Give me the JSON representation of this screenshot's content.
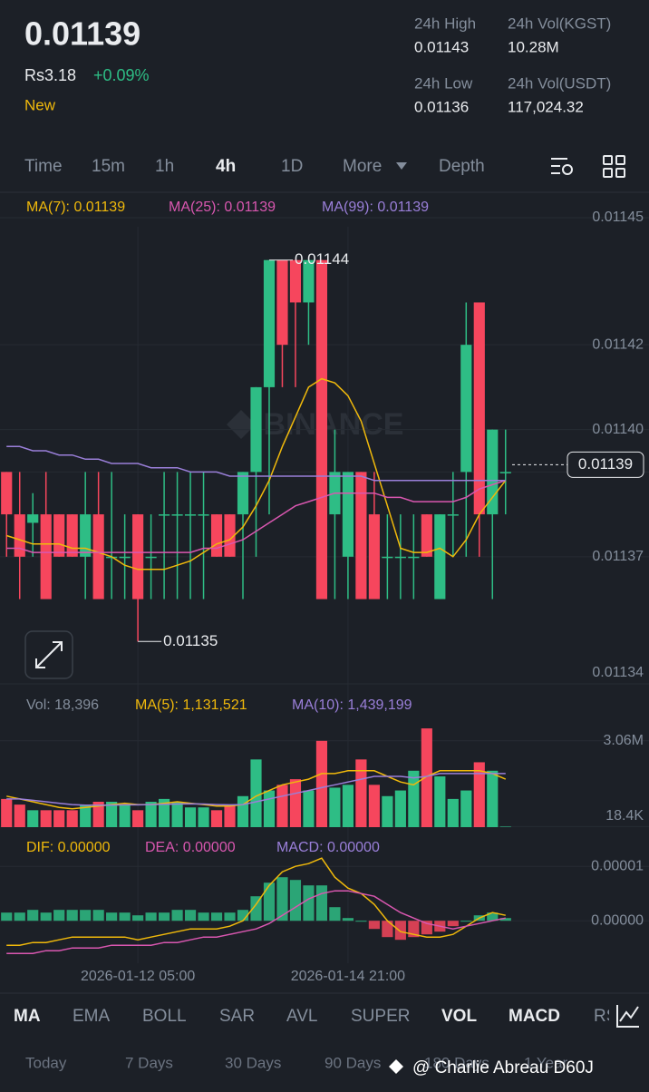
{
  "header": {
    "price": "0.01139",
    "fiat": "Rs3.18",
    "change": "+0.09%",
    "tag": "New",
    "stats": [
      {
        "label": "24h High",
        "value": "0.01143"
      },
      {
        "label": "24h Vol(KGST)",
        "value": "10.28M"
      },
      {
        "label": "24h Low",
        "value": "0.01136"
      },
      {
        "label": "24h Vol(USDT)",
        "value": "117,024.32"
      }
    ]
  },
  "intervals": {
    "items": [
      "Time",
      "15m",
      "1h",
      "4h",
      "1D",
      "More",
      "Depth"
    ],
    "active": "4h"
  },
  "watermark": "BINANCE",
  "chart_data": [
    {
      "type": "candlestick",
      "up_color": "#2ebd85",
      "down_color": "#f6465d",
      "open": [
        0.01139,
        0.01138,
        0.011378,
        0.01138,
        0.01138,
        0.01138,
        0.01137,
        0.01138,
        0.01137,
        0.01137,
        0.01138,
        0.01137,
        0.01138,
        0.01138,
        0.01138,
        0.01138,
        0.01138,
        0.01138,
        0.01138,
        0.01139,
        0.01141,
        0.01144,
        0.01144,
        0.01143,
        0.01144,
        0.01138,
        0.01137,
        0.01139,
        0.01138,
        0.01137,
        0.01137,
        0.01137,
        0.01138,
        0.01136,
        0.01138,
        0.01139,
        0.01143,
        0.01138,
        0.01139
      ],
      "high": [
        0.01139,
        0.01139,
        0.011385,
        0.01139,
        0.01138,
        0.01138,
        0.01139,
        0.01139,
        0.01139,
        0.01138,
        0.01138,
        0.01138,
        0.01139,
        0.01139,
        0.01139,
        0.01139,
        0.01138,
        0.01138,
        0.01139,
        0.01141,
        0.01144,
        0.01144,
        0.01144,
        0.01144,
        0.01144,
        0.0114,
        0.01139,
        0.01139,
        0.01139,
        0.01138,
        0.01138,
        0.01138,
        0.01138,
        0.01138,
        0.01139,
        0.01143,
        0.01143,
        0.0114,
        0.0114
      ],
      "low": [
        0.01137,
        0.01136,
        0.01137,
        0.01136,
        0.01137,
        0.01137,
        0.01136,
        0.01136,
        0.01136,
        0.01136,
        0.01135,
        0.01136,
        0.01136,
        0.01136,
        0.01136,
        0.01136,
        0.01137,
        0.01137,
        0.01136,
        0.01137,
        0.01138,
        0.01141,
        0.01141,
        0.01142,
        0.01136,
        0.01136,
        0.01136,
        0.01136,
        0.01136,
        0.01136,
        0.01136,
        0.01136,
        0.01137,
        0.01136,
        0.01137,
        0.01137,
        0.01137,
        0.01136,
        0.01138
      ],
      "close": [
        0.01138,
        0.01137,
        0.01138,
        0.01136,
        0.01137,
        0.01137,
        0.01138,
        0.01136,
        0.01137,
        0.01137,
        0.01136,
        0.01137,
        0.01138,
        0.01138,
        0.01138,
        0.01138,
        0.01137,
        0.01137,
        0.01139,
        0.01141,
        0.01144,
        0.01142,
        0.01143,
        0.01144,
        0.01136,
        0.01139,
        0.01139,
        0.01136,
        0.01136,
        0.01137,
        0.01137,
        0.01137,
        0.01137,
        0.01138,
        0.01138,
        0.01142,
        0.01138,
        0.0114,
        0.01139
      ],
      "series": [
        {
          "name": "MA(7): 0.01139",
          "color": "#f0b90b",
          "values": [
            0.011375,
            0.011374,
            0.011373,
            0.011373,
            0.011373,
            0.011372,
            0.011372,
            0.011371,
            0.01137,
            0.011368,
            0.011367,
            0.011367,
            0.011367,
            0.011368,
            0.011369,
            0.011371,
            0.011373,
            0.011374,
            0.011377,
            0.011382,
            0.011388,
            0.011396,
            0.011403,
            0.01141,
            0.011412,
            0.011411,
            0.011408,
            0.011402,
            0.011392,
            0.011382,
            0.011372,
            0.011371,
            0.011371,
            0.011372,
            0.01137,
            0.011374,
            0.01138,
            0.011384,
            0.011388
          ]
        },
        {
          "name": "MA(25): 0.01139",
          "color": "#d957b0",
          "values": [
            0.011372,
            0.011372,
            0.011371,
            0.011371,
            0.011371,
            0.011371,
            0.011371,
            0.011371,
            0.011371,
            0.011371,
            0.011371,
            0.011371,
            0.011371,
            0.011371,
            0.011371,
            0.011372,
            0.011372,
            0.011373,
            0.011374,
            0.011376,
            0.011378,
            0.01138,
            0.011382,
            0.011383,
            0.011384,
            0.011385,
            0.011385,
            0.011385,
            0.011385,
            0.011384,
            0.011384,
            0.011383,
            0.011383,
            0.011383,
            0.011383,
            0.011384,
            0.011386,
            0.011387,
            0.011388
          ]
        },
        {
          "name": "MA(99): 0.01139",
          "color": "#9a7fd9",
          "values": [
            0.011396,
            0.011396,
            0.011395,
            0.011395,
            0.011394,
            0.011394,
            0.011393,
            0.011393,
            0.011392,
            0.011392,
            0.011392,
            0.011391,
            0.011391,
            0.011391,
            0.01139,
            0.01139,
            0.01139,
            0.011389,
            0.011389,
            0.011389,
            0.011389,
            0.011389,
            0.011389,
            0.011389,
            0.011389,
            0.011389,
            0.011389,
            0.011389,
            0.011388,
            0.011388,
            0.011388,
            0.011388,
            0.011388,
            0.011388,
            0.011388,
            0.011388,
            0.011388,
            0.011388,
            0.011388
          ]
        }
      ],
      "ylim": [
        0.01134,
        0.01145
      ],
      "yticks": [
        0.01145,
        0.01142,
        {
          "value": 0.0114,
          "label": "0.01140"
        },
        0.01139,
        0.01137,
        0.01134
      ],
      "annotations": [
        {
          "value": 0.01144,
          "label": "0.01144",
          "at": "high"
        },
        {
          "value": 0.01135,
          "label": "0.01135",
          "at": "low"
        }
      ],
      "current": {
        "value": 0.01139,
        "label": "0.01139"
      },
      "grid": true
    },
    {
      "type": "bar",
      "series": [
        {
          "name": "Vol: 18,396",
          "color": "#848e9c",
          "values": [
            1000000,
            800000,
            600000,
            600000,
            600000,
            600000,
            800000,
            900000,
            900000,
            800000,
            600000,
            900000,
            1000000,
            900000,
            700000,
            700000,
            600000,
            800000,
            1100000,
            2400000,
            1300000,
            1500000,
            1700000,
            1300000,
            3060000,
            1400000,
            1500000,
            2400000,
            1500000,
            1100000,
            1300000,
            2000000,
            3500000,
            1800000,
            1000000,
            1300000,
            2300000,
            2000000,
            18396
          ]
        },
        {
          "name": "MA(5): 1,131,521",
          "color": "#f0b90b",
          "values": [
            1100000,
            1000000,
            900000,
            800000,
            700000,
            650000,
            700000,
            750000,
            800000,
            850000,
            800000,
            800000,
            850000,
            900000,
            850000,
            800000,
            750000,
            750000,
            800000,
            1100000,
            1300000,
            1500000,
            1600000,
            1700000,
            1900000,
            1900000,
            2000000,
            2000000,
            2000000,
            1800000,
            1600000,
            1500000,
            1800000,
            2000000,
            2000000,
            2000000,
            2000000,
            1900000,
            1700000
          ]
        },
        {
          "name": "MA(10): 1,439,199",
          "color": "#9a7fd9",
          "values": [
            1000000,
            1000000,
            950000,
            900000,
            850000,
            800000,
            780000,
            780000,
            780000,
            790000,
            790000,
            800000,
            810000,
            820000,
            830000,
            820000,
            800000,
            790000,
            800000,
            900000,
            1000000,
            1100000,
            1200000,
            1300000,
            1400000,
            1500000,
            1600000,
            1700000,
            1800000,
            1800000,
            1800000,
            1750000,
            1800000,
            1900000,
            1900000,
            1900000,
            1900000,
            1900000,
            1900000
          ]
        }
      ],
      "ylim": [
        0,
        3600000
      ],
      "yticks": [
        {
          "value": 3060000,
          "label": "3.06M"
        },
        {
          "value": 18400,
          "label": "18.4K"
        }
      ]
    },
    {
      "type": "macd",
      "x": [
        null,
        null,
        null,
        null,
        null,
        null,
        null,
        null,
        null,
        null,
        "2026-01-12 05:00",
        null,
        null,
        null,
        null,
        null,
        null,
        null,
        null,
        null,
        null,
        null,
        null,
        null,
        null,
        null,
        "2026-01-14 21:00",
        null,
        null,
        null,
        null,
        null,
        null,
        null,
        null,
        null,
        null,
        null,
        null
      ],
      "series": [
        {
          "name": "DIF: 0.00000",
          "color": "#f0b90b",
          "values": [
            -4.5e-06,
            -4.5e-06,
            -4e-06,
            -4e-06,
            -3.5e-06,
            -3e-06,
            -3e-06,
            -3e-06,
            -3e-06,
            -3e-06,
            -3.5e-06,
            -3e-06,
            -2.5e-06,
            -2e-06,
            -1.5e-06,
            -1.5e-06,
            -1.5e-06,
            -1e-06,
            0,
            3e-06,
            6.5e-06,
            9e-06,
            1e-05,
            1.05e-05,
            1.15e-05,
            8e-06,
            6e-06,
            5e-06,
            3e-06,
            0,
            -2e-06,
            -2.5e-06,
            -3e-06,
            -3e-06,
            -2.5e-06,
            -1e-06,
            5e-07,
            1.5e-06,
            1e-06
          ]
        },
        {
          "name": "DEA: 0.00000",
          "color": "#d957b0",
          "values": [
            -6e-06,
            -6e-06,
            -6e-06,
            -5.5e-06,
            -5.5e-06,
            -5e-06,
            -5e-06,
            -5e-06,
            -4.5e-06,
            -4.5e-06,
            -4.5e-06,
            -4.5e-06,
            -4e-06,
            -4e-06,
            -3.5e-06,
            -3e-06,
            -3e-06,
            -2.5e-06,
            -2e-06,
            -1.5e-06,
            -5e-07,
            1e-06,
            2.5e-06,
            4e-06,
            5e-06,
            5.5e-06,
            5.5e-06,
            5e-06,
            4.5e-06,
            3e-06,
            1.5e-06,
            5e-07,
            -5e-07,
            -1e-06,
            -1.5e-06,
            -1e-06,
            -5e-07,
            0,
            5e-07
          ]
        },
        {
          "name": "MACD: 0.00000",
          "color": "#9a7fd9",
          "kind": "histogram",
          "values": [
            1.5e-06,
            1.5e-06,
            2e-06,
            1.5e-06,
            2e-06,
            2e-06,
            2e-06,
            2e-06,
            1.5e-06,
            1.5e-06,
            1e-06,
            1.5e-06,
            1.5e-06,
            2e-06,
            2e-06,
            1.5e-06,
            1.5e-06,
            1.5e-06,
            2e-06,
            4.5e-06,
            7e-06,
            8e-06,
            7.5e-06,
            6.5e-06,
            6.5e-06,
            2.5e-06,
            5e-07,
            0,
            -1.5e-06,
            -3e-06,
            -3.5e-06,
            -3e-06,
            -2.5e-06,
            -2e-06,
            -1e-06,
            0,
            1e-06,
            1.5e-06,
            5e-07
          ]
        }
      ],
      "ylim": [
        -7.8e-06,
        1.42e-05
      ],
      "yticks": [
        {
          "value": 1e-05,
          "label": "0.00001"
        },
        {
          "value": 0,
          "label": "0.00000"
        }
      ]
    }
  ],
  "indicator_tabs": {
    "items": [
      "MA",
      "EMA",
      "BOLL",
      "SAR",
      "AVL",
      "SUPER",
      "VOL",
      "MACD",
      "RSI"
    ],
    "active": [
      "MA",
      "VOL",
      "MACD"
    ]
  },
  "ranges": [
    "Today",
    "7 Days",
    "30 Days",
    "90 Days",
    "180 Days",
    "1 Year"
  ],
  "credit": "@ Charlie Abreau D60J"
}
